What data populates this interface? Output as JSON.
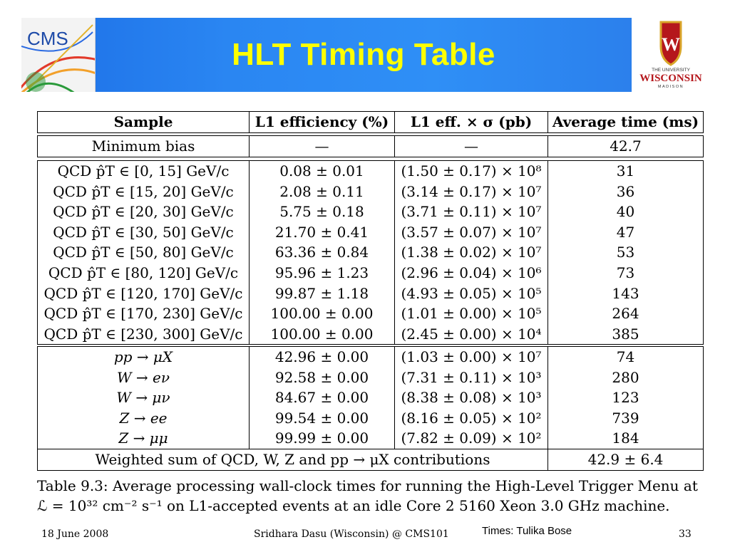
{
  "slide": {
    "title": "HLT Timing Table",
    "logos": {
      "left": "CMS",
      "right_top": "THE UNIVERSITY",
      "right_main": "WISCONSIN",
      "right_bottom": "MADISON"
    }
  },
  "table": {
    "header": [
      "Sample",
      "L1 efficiency (%)",
      "L1 eff. × σ (pb)",
      "Average time (ms)"
    ],
    "minbias": {
      "sample": "Minimum bias",
      "eff": "—",
      "xsec": "—",
      "time": "42.7"
    },
    "qcd": [
      {
        "sample": "QCD p̂T ∈ [0, 15] GeV/c",
        "eff": "0.08 ± 0.01",
        "xsec": "(1.50 ± 0.17) × 10⁸",
        "time": "31"
      },
      {
        "sample": "QCD p̂T ∈ [15, 20] GeV/c",
        "eff": "2.08 ± 0.11",
        "xsec": "(3.14 ± 0.17) × 10⁷",
        "time": "36"
      },
      {
        "sample": "QCD p̂T ∈ [20, 30] GeV/c",
        "eff": "5.75 ± 0.18",
        "xsec": "(3.71 ± 0.11) × 10⁷",
        "time": "40"
      },
      {
        "sample": "QCD p̂T ∈ [30, 50] GeV/c",
        "eff": "21.70 ± 0.41",
        "xsec": "(3.57 ± 0.07) × 10⁷",
        "time": "47"
      },
      {
        "sample": "QCD p̂T ∈ [50, 80] GeV/c",
        "eff": "63.36 ± 0.84",
        "xsec": "(1.38 ± 0.02) × 10⁷",
        "time": "53"
      },
      {
        "sample": "QCD p̂T ∈ [80, 120] GeV/c",
        "eff": "95.96 ± 1.23",
        "xsec": "(2.96 ± 0.04) × 10⁶",
        "time": "73"
      },
      {
        "sample": "QCD p̂T ∈ [120, 170] GeV/c",
        "eff": "99.87 ± 1.18",
        "xsec": "(4.93 ± 0.05) × 10⁵",
        "time": "143"
      },
      {
        "sample": "QCD p̂T ∈ [170, 230] GeV/c",
        "eff": "100.00 ± 0.00",
        "xsec": "(1.01 ± 0.00) × 10⁵",
        "time": "264"
      },
      {
        "sample": "QCD p̂T ∈ [230, 300] GeV/c",
        "eff": "100.00 ± 0.00",
        "xsec": "(2.45 ± 0.00) × 10⁴",
        "time": "385"
      }
    ],
    "ewk": [
      {
        "sample": "pp → μX",
        "eff": "42.96 ± 0.00",
        "xsec": "(1.03 ± 0.00) × 10⁷",
        "time": "74"
      },
      {
        "sample": "W → eν",
        "eff": "92.58 ± 0.00",
        "xsec": "(7.31 ± 0.11) × 10³",
        "time": "280"
      },
      {
        "sample": "W → μν",
        "eff": "84.67 ± 0.00",
        "xsec": "(8.38 ± 0.08) × 10³",
        "time": "123"
      },
      {
        "sample": "Z → ee",
        "eff": "99.54 ± 0.00",
        "xsec": "(8.16 ± 0.05) × 10²",
        "time": "739"
      },
      {
        "sample": "Z → μμ",
        "eff": "99.99 ± 0.00",
        "xsec": "(7.82 ± 0.09) × 10²",
        "time": "184"
      }
    ],
    "weighted": {
      "label": "Weighted sum of QCD, W, Z and pp → μX contributions",
      "time": "42.9 ± 6.4"
    }
  },
  "caption": {
    "line1": "Table 9.3: Average processing wall-clock times for running the High-Level Trigger Menu at",
    "line2": "ℒ = 10³² cm⁻² s⁻¹ on L1-accepted events at an idle Core 2 5160 Xeon 3.0 GHz machine."
  },
  "footer": {
    "date": "18 June 2008",
    "presenter": "Sridhara Dasu (Wisconsin) @ CMS101",
    "credit": "Times:  Tulika Bose",
    "page": "33"
  }
}
